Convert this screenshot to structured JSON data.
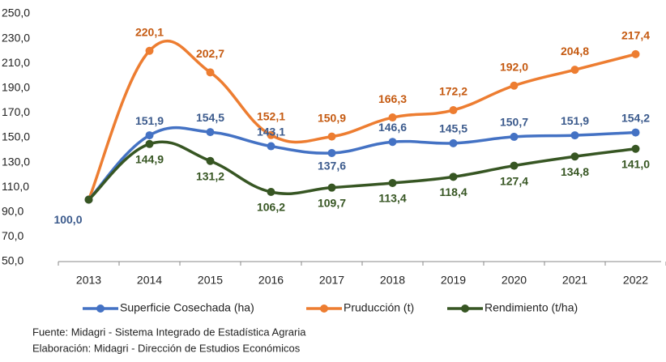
{
  "chart_data": {
    "type": "line",
    "categories": [
      "2013",
      "2014",
      "2015",
      "2016",
      "2017",
      "2018",
      "2019",
      "2020",
      "2021",
      "2022"
    ],
    "ylim": [
      50,
      250
    ],
    "yticks": [
      {
        "value": 50,
        "label": "50,0"
      },
      {
        "value": 70,
        "label": "70,0"
      },
      {
        "value": 90,
        "label": "90,0"
      },
      {
        "value": 110,
        "label": "110,0"
      },
      {
        "value": 130,
        "label": "130,0"
      },
      {
        "value": 150,
        "label": "150,0"
      },
      {
        "value": 170,
        "label": "170,0"
      },
      {
        "value": 190,
        "label": "190,0"
      },
      {
        "value": 210,
        "label": "210,0"
      },
      {
        "value": 230,
        "label": "230,0"
      },
      {
        "value": 250,
        "label": "250,0"
      }
    ],
    "grid": false,
    "legend": "bottom",
    "series": [
      {
        "name": "Superficie Cosechada (ha)",
        "color": "#4472c4",
        "label_color": "#3b5a8c",
        "values": [
          100,
          151.9,
          154.5,
          143.1,
          137.6,
          146.6,
          145.5,
          150.7,
          151.9,
          154.2
        ],
        "value_labels": [
          "100,0",
          "151,9",
          "154,5",
          "143,1",
          "137,6",
          "146,6",
          "145,5",
          "150,7",
          "151,9",
          "154,2"
        ]
      },
      {
        "name": "Pruducción (t)",
        "color": "#ed7d31",
        "label_color": "#c55a11",
        "values": [
          100,
          220.1,
          202.7,
          152.1,
          150.9,
          166.3,
          172.2,
          192.0,
          204.8,
          217.4
        ],
        "value_labels": [
          null,
          "220,1",
          "202,7",
          "152,1",
          "150,9",
          "166,3",
          "172,2",
          "192,0",
          "204,8",
          "217,4"
        ]
      },
      {
        "name": "Rendimiento (t/ha)",
        "color": "#375623",
        "label_color": "#375623",
        "values": [
          100,
          144.9,
          131.2,
          106.2,
          109.7,
          113.4,
          118.4,
          127.4,
          134.8,
          141.0
        ],
        "value_labels": [
          null,
          "144,9",
          "131,2",
          "106,2",
          "109,7",
          "113,4",
          "118,4",
          "127,4",
          "134,8",
          "141,0"
        ]
      }
    ],
    "notes": [
      "Fuente: Midagri - Sistema Integrado de Estadística Agraria",
      "Elaboración: Midagri - Dirección de Estudios Económicos"
    ]
  }
}
